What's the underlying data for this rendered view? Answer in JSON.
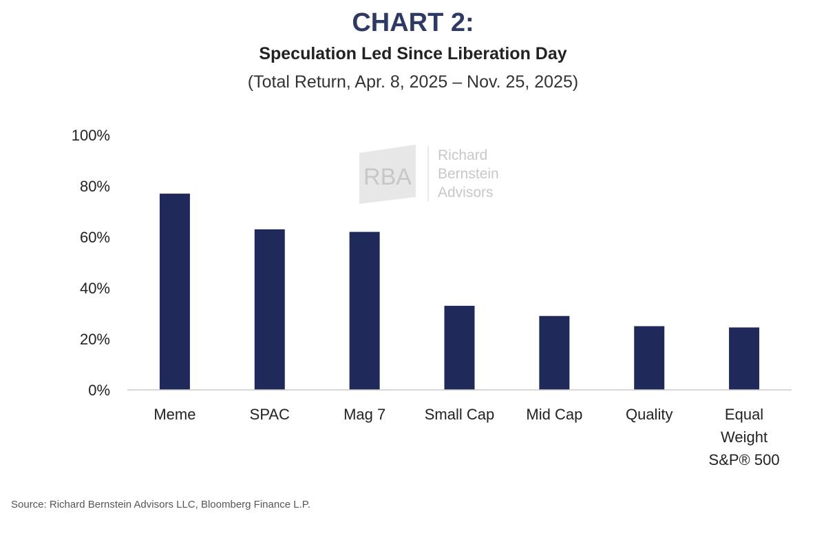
{
  "header": {
    "title": "CHART 2:",
    "subtitle": "Speculation Led Since Liberation Day",
    "date_range": "(Total Return, Apr. 8, 2025 – Nov. 25, 2025)"
  },
  "watermark": {
    "mark": "RBA",
    "name_lines": [
      "Richard",
      "Bernstein",
      "Advisors"
    ]
  },
  "source": "Source: Richard Bernstein Advisors LLC, Bloomberg Finance L.P.",
  "colors": {
    "bar": "#1f2a5a",
    "title": "#2e3a66",
    "axis": "#cccccc"
  },
  "chart_data": {
    "type": "bar",
    "title": "Speculation Led Since Liberation Day",
    "subtitle": "(Total Return, Apr. 8, 2025 – Nov. 25, 2025)",
    "categories": [
      [
        "Meme"
      ],
      [
        "SPAC"
      ],
      [
        "Mag 7"
      ],
      [
        "Small Cap"
      ],
      [
        "Mid Cap"
      ],
      [
        "Quality"
      ],
      [
        "Equal",
        "Weight",
        "S&P® 500"
      ]
    ],
    "values": [
      77,
      63,
      62,
      33,
      29,
      25,
      24.5
    ],
    "ylim": [
      0,
      100
    ],
    "yticks": [
      0,
      20,
      40,
      60,
      80,
      100
    ],
    "ytick_labels": [
      "0%",
      "20%",
      "40%",
      "60%",
      "80%",
      "100%"
    ],
    "grid": false,
    "legend": "none"
  }
}
